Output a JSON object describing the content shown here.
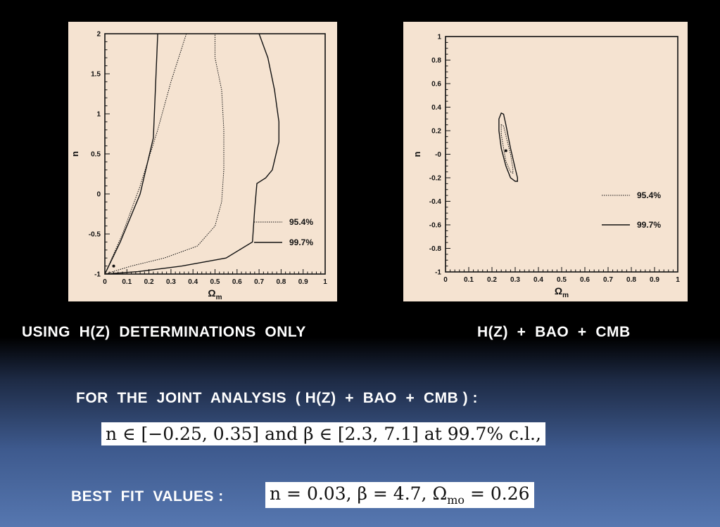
{
  "chart_data": [
    {
      "type": "contour",
      "xlabel": "Ω",
      "xlabel_sub": "m",
      "ylabel": "n",
      "xlim": [
        0,
        1
      ],
      "ylim": [
        -1,
        2
      ],
      "xticks": [
        "0",
        "0.1",
        "0.2",
        "0.3",
        "0.4",
        "0.5",
        "0.6",
        "0.7",
        "0.8",
        "0.9",
        "1"
      ],
      "yticks": [
        {
          "v": 2,
          "label": "2"
        },
        {
          "v": 1.5,
          "label": "1.5"
        },
        {
          "v": 1,
          "label": "1"
        },
        {
          "v": 0.5,
          "label": "0.5"
        },
        {
          "v": 0,
          "label": "0"
        },
        {
          "v": -0.5,
          "label": "-0.5"
        },
        {
          "v": -1,
          "label": "-1"
        }
      ],
      "legend": [
        "95.4%",
        "99.7%"
      ],
      "legend_placement": "lower-right",
      "best_fit": [
        0.04,
        -0.9
      ],
      "contours": [
        {
          "level": "99.7%",
          "style": "solid",
          "points": [
            [
              0.24,
              2.0
            ],
            [
              0.22,
              0.7
            ],
            [
              0.16,
              0.0
            ],
            [
              0.07,
              -0.6
            ],
            [
              0.0,
              -1.0
            ],
            [
              0.15,
              -0.97
            ],
            [
              0.35,
              -0.9
            ],
            [
              0.55,
              -0.8
            ],
            [
              0.67,
              -0.6
            ],
            [
              0.68,
              -0.2
            ],
            [
              0.69,
              0.13
            ],
            [
              0.73,
              0.2
            ],
            [
              0.76,
              0.3
            ],
            [
              0.79,
              0.65
            ],
            [
              0.79,
              0.9
            ],
            [
              0.77,
              1.3
            ],
            [
              0.74,
              1.7
            ],
            [
              0.7,
              2.0
            ]
          ]
        },
        {
          "level": "95.4%",
          "style": "dotted",
          "points": [
            [
              0.37,
              2.0
            ],
            [
              0.3,
              1.4
            ],
            [
              0.24,
              0.8
            ],
            [
              0.16,
              0.1
            ],
            [
              0.08,
              -0.5
            ],
            [
              0.0,
              -1.0
            ],
            [
              0.12,
              -0.9
            ],
            [
              0.27,
              -0.8
            ],
            [
              0.42,
              -0.65
            ],
            [
              0.5,
              -0.4
            ],
            [
              0.53,
              -0.1
            ],
            [
              0.54,
              0.3
            ],
            [
              0.54,
              0.8
            ],
            [
              0.53,
              1.3
            ],
            [
              0.5,
              1.7
            ],
            [
              0.5,
              2.0
            ]
          ]
        }
      ]
    },
    {
      "type": "contour",
      "xlabel": "Ω",
      "xlabel_sub": "m",
      "ylabel": "n",
      "xlim": [
        0,
        1
      ],
      "ylim": [
        -1,
        1
      ],
      "xticks": [
        "0",
        "0.1",
        "0.2",
        "0.3",
        "0.4",
        "0.5",
        "0.6",
        "0.7",
        "0.8",
        "0.9",
        "1"
      ],
      "yticks": [
        {
          "v": 1,
          "label": "1"
        },
        {
          "v": 0.8,
          "label": "0.8"
        },
        {
          "v": 0.6,
          "label": "0.6"
        },
        {
          "v": 0.4,
          "label": "0.4"
        },
        {
          "v": 0.2,
          "label": "0.2"
        },
        {
          "v": 0,
          "label": "-0"
        },
        {
          "v": -0.2,
          "label": "-0.2"
        },
        {
          "v": -0.4,
          "label": "-0.4"
        },
        {
          "v": -0.6,
          "label": "-0.6"
        },
        {
          "v": -0.8,
          "label": "-0.8"
        },
        {
          "v": -1,
          "label": "-1"
        }
      ],
      "legend": [
        "95.4%",
        "99.7%"
      ],
      "legend_placement": "right",
      "best_fit": [
        0.26,
        0.03
      ],
      "contours": [
        {
          "level": "99.7%",
          "style": "solid",
          "points": [
            [
              0.24,
              0.35
            ],
            [
              0.25,
              0.34
            ],
            [
              0.26,
              0.25
            ],
            [
              0.28,
              0.05
            ],
            [
              0.3,
              -0.12
            ],
            [
              0.31,
              -0.2
            ],
            [
              0.31,
              -0.23
            ],
            [
              0.3,
              -0.23
            ],
            [
              0.28,
              -0.2
            ],
            [
              0.26,
              -0.1
            ],
            [
              0.24,
              0.05
            ],
            [
              0.23,
              0.2
            ],
            [
              0.23,
              0.3
            ]
          ]
        },
        {
          "level": "95.4%",
          "style": "dotted",
          "points": [
            [
              0.24,
              0.25
            ],
            [
              0.25,
              0.24
            ],
            [
              0.26,
              0.16
            ],
            [
              0.28,
              0.0
            ],
            [
              0.29,
              -0.12
            ],
            [
              0.29,
              -0.16
            ],
            [
              0.28,
              -0.15
            ],
            [
              0.26,
              -0.06
            ],
            [
              0.25,
              0.05
            ],
            [
              0.24,
              0.17
            ]
          ]
        }
      ]
    }
  ],
  "captions": {
    "left": "USING  H(Z)  DETERMINATIONS  ONLY",
    "right": "H(Z)  +  BAO  +  CMB",
    "joint": "FOR  THE  JOINT  ANALYSIS  ( H(Z)  +  BAO  +  CMB ) :",
    "best_fit_label": "BEST  FIT  VALUES :"
  },
  "results": {
    "constraint": "n ∈ [−0.25, 0.35] and β ∈ [2.3, 7.1] at 99.7% c.l.,",
    "best_fit": "n = 0.03,  β = 4.7,  Ω",
    "best_fit_sub": "mo",
    "best_fit_tail": " = 0.26"
  }
}
